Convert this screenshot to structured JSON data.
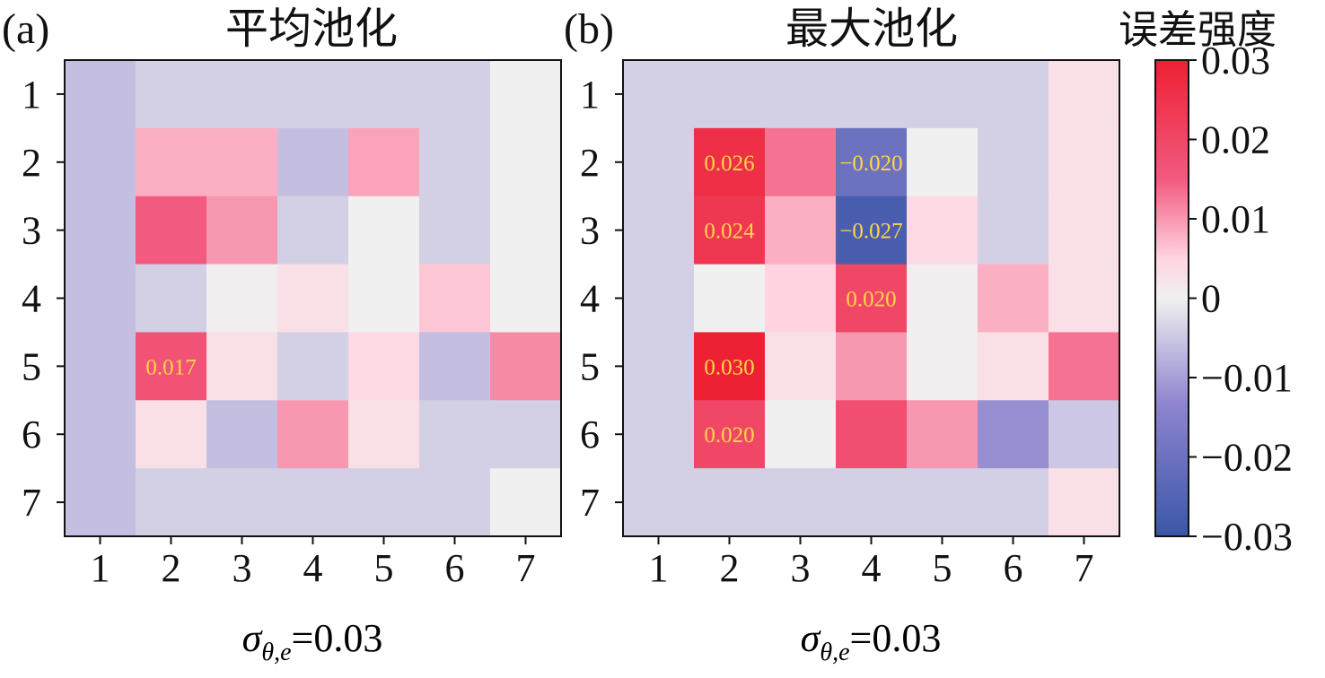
{
  "colors": {
    "negative": "#3a56a8",
    "mid_neg": "#8f85d0",
    "neutral": "#f0f0f0",
    "positive_light": "#ffd6e2",
    "positive_mid": "#f25a80",
    "positive": "#ee2033",
    "cell_label": "#ffd54a"
  },
  "chart_data": [
    {
      "type": "heatmap",
      "panel": "(a)",
      "title": "平均池化",
      "xlabel": "σθ,e=0.03",
      "xlabel_base": "σ",
      "xlabel_sub": "θ,e",
      "xlabel_value": "=0.03",
      "x_ticks": [
        "1",
        "2",
        "3",
        "4",
        "5",
        "6",
        "7"
      ],
      "y_ticks": [
        "1",
        "2",
        "3",
        "4",
        "5",
        "6",
        "7"
      ],
      "values": [
        [
          -0.006,
          -0.004,
          -0.004,
          -0.004,
          -0.004,
          -0.004,
          0.0
        ],
        [
          -0.006,
          0.008,
          0.008,
          -0.006,
          0.009,
          -0.004,
          0.0
        ],
        [
          -0.006,
          0.015,
          0.01,
          -0.004,
          0.0,
          -0.004,
          0.0
        ],
        [
          -0.006,
          -0.004,
          0.0005,
          0.003,
          0.0,
          0.006,
          0.0
        ],
        [
          -0.006,
          0.017,
          0.003,
          -0.004,
          0.004,
          -0.006,
          0.011
        ],
        [
          -0.006,
          0.003,
          -0.006,
          0.01,
          0.003,
          -0.004,
          -0.004
        ],
        [
          -0.006,
          -0.004,
          -0.004,
          -0.004,
          -0.004,
          -0.004,
          0.0
        ]
      ],
      "cell_labels": [
        {
          "row": 5,
          "col": 2,
          "text": "0.017"
        }
      ]
    },
    {
      "type": "heatmap",
      "panel": "(b)",
      "title": "最大池化",
      "xlabel": "σθ,e=0.03",
      "xlabel_base": "σ",
      "xlabel_sub": "θ,e",
      "xlabel_value": "=0.03",
      "x_ticks": [
        "1",
        "2",
        "3",
        "4",
        "5",
        "6",
        "7"
      ],
      "y_ticks": [
        "1",
        "2",
        "3",
        "4",
        "5",
        "6",
        "7"
      ],
      "values": [
        [
          -0.004,
          -0.004,
          -0.004,
          -0.004,
          -0.004,
          -0.004,
          0.003
        ],
        [
          -0.004,
          0.026,
          0.013,
          -0.02,
          0.0,
          -0.004,
          0.003
        ],
        [
          -0.004,
          0.024,
          0.008,
          -0.027,
          0.004,
          -0.004,
          0.003
        ],
        [
          -0.004,
          0.0,
          0.005,
          0.02,
          0.0005,
          0.008,
          0.003
        ],
        [
          -0.004,
          0.03,
          0.003,
          0.01,
          0.0005,
          0.003,
          0.013
        ],
        [
          -0.004,
          0.02,
          0.0,
          0.018,
          0.01,
          -0.012,
          -0.005
        ],
        [
          -0.004,
          -0.004,
          -0.004,
          -0.004,
          -0.004,
          -0.004,
          0.003
        ]
      ],
      "cell_labels": [
        {
          "row": 2,
          "col": 2,
          "text": "0.026"
        },
        {
          "row": 2,
          "col": 4,
          "text": "−0.020"
        },
        {
          "row": 3,
          "col": 2,
          "text": "0.024"
        },
        {
          "row": 3,
          "col": 4,
          "text": "−0.027"
        },
        {
          "row": 4,
          "col": 4,
          "text": "0.020"
        },
        {
          "row": 5,
          "col": 2,
          "text": "0.030"
        },
        {
          "row": 6,
          "col": 2,
          "text": "0.020"
        }
      ]
    }
  ],
  "colorbar": {
    "title": "误差强度",
    "ticks": [
      {
        "value": 0.03,
        "label": "0.03"
      },
      {
        "value": 0.02,
        "label": "0.02"
      },
      {
        "value": 0.01,
        "label": "0.01"
      },
      {
        "value": 0,
        "label": "0"
      },
      {
        "value": -0.01,
        "label": "−0.01"
      },
      {
        "value": -0.02,
        "label": "−0.02"
      },
      {
        "value": -0.03,
        "label": "−0.03"
      }
    ],
    "range": [
      -0.03,
      0.03
    ]
  }
}
